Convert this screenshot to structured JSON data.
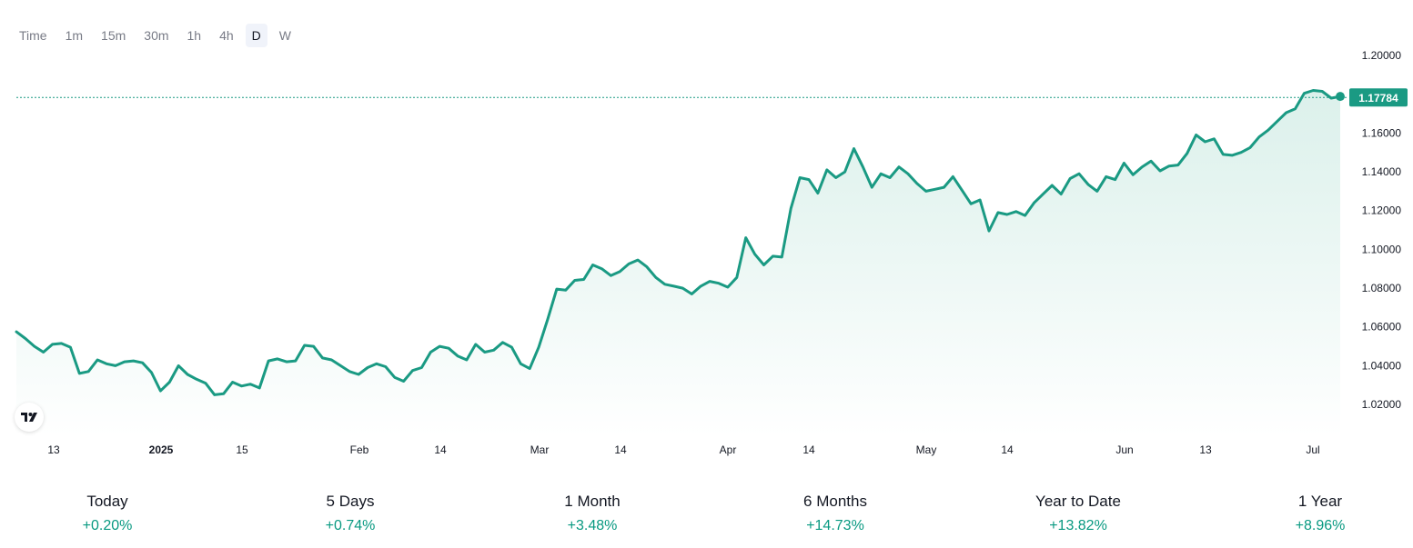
{
  "toolbar": {
    "time_label": "Time",
    "intervals": [
      "1m",
      "15m",
      "30m",
      "1h",
      "4h",
      "D",
      "W"
    ],
    "active_interval": "D"
  },
  "logo": {
    "icon": "tradingview-logo-icon"
  },
  "colors": {
    "line": "#1a9a83",
    "fill": "#e8f5f2",
    "positive": "#089981",
    "last_price_bg": "#1a9a83"
  },
  "chart_data": {
    "type": "area",
    "title": "",
    "xlabel": "",
    "ylabel": "",
    "x_ticks": [
      "13",
      "2025",
      "15",
      "Feb",
      "14",
      "Mar",
      "14",
      "Apr",
      "14",
      "May",
      "14",
      "Jun",
      "13",
      "Jul"
    ],
    "y_ticks": [
      "1.02000",
      "1.04000",
      "1.06000",
      "1.08000",
      "1.10000",
      "1.12000",
      "1.14000",
      "1.16000",
      "1.20000"
    ],
    "ylim": [
      1.0,
      1.2
    ],
    "last_price": "1.17784",
    "grid": false,
    "series": [
      {
        "values": [
          1.057,
          1.0535,
          1.0495,
          1.0465,
          1.0505,
          1.051,
          1.049,
          1.0355,
          1.0365,
          1.0425,
          1.0405,
          1.0395,
          1.0415,
          1.042,
          1.041,
          1.036,
          1.0265,
          1.031,
          1.0395,
          1.035,
          1.0325,
          1.0305,
          1.0245,
          1.025,
          1.031,
          1.029,
          1.03,
          1.028,
          1.042,
          1.043,
          1.0415,
          1.042,
          1.05,
          1.0495,
          1.0435,
          1.0425,
          1.0395,
          1.0365,
          1.035,
          1.0385,
          1.0405,
          1.039,
          1.0335,
          1.0315,
          1.037,
          1.0385,
          1.0465,
          1.0495,
          1.0485,
          1.0445,
          1.0425,
          1.0505,
          1.0465,
          1.0475,
          1.0515,
          1.049,
          1.0405,
          1.038,
          1.049,
          1.0635,
          1.079,
          1.0785,
          1.0835,
          1.084,
          1.0915,
          1.0895,
          1.086,
          1.088,
          1.092,
          1.094,
          1.0905,
          1.085,
          1.0815,
          1.0805,
          1.0795,
          1.0765,
          1.0805,
          1.083,
          1.082,
          1.08,
          1.085,
          1.1055,
          1.097,
          1.0915,
          1.096,
          1.0955,
          1.1205,
          1.1365,
          1.1355,
          1.1285,
          1.1405,
          1.1365,
          1.1395,
          1.1515,
          1.142,
          1.1315,
          1.1385,
          1.1365,
          1.142,
          1.1385,
          1.1335,
          1.1295,
          1.1305,
          1.1315,
          1.137,
          1.13,
          1.123,
          1.125,
          1.109,
          1.1185,
          1.1175,
          1.119,
          1.117,
          1.1235,
          1.128,
          1.1325,
          1.128,
          1.136,
          1.1385,
          1.133,
          1.1295,
          1.137,
          1.1355,
          1.144,
          1.138,
          1.142,
          1.145,
          1.14,
          1.1425,
          1.143,
          1.149,
          1.1585,
          1.155,
          1.1565,
          1.1485,
          1.148,
          1.1495,
          1.152,
          1.1575,
          1.161,
          1.1655,
          1.17,
          1.172,
          1.18,
          1.1815,
          1.181,
          1.1775,
          1.1784
        ]
      }
    ]
  },
  "stats": [
    {
      "label": "Today",
      "value": "+0.20%"
    },
    {
      "label": "5 Days",
      "value": "+0.74%"
    },
    {
      "label": "1 Month",
      "value": "+3.48%"
    },
    {
      "label": "6 Months",
      "value": "+14.73%"
    },
    {
      "label": "Year to Date",
      "value": "+13.82%"
    },
    {
      "label": "1 Year",
      "value": "+8.96%"
    }
  ]
}
